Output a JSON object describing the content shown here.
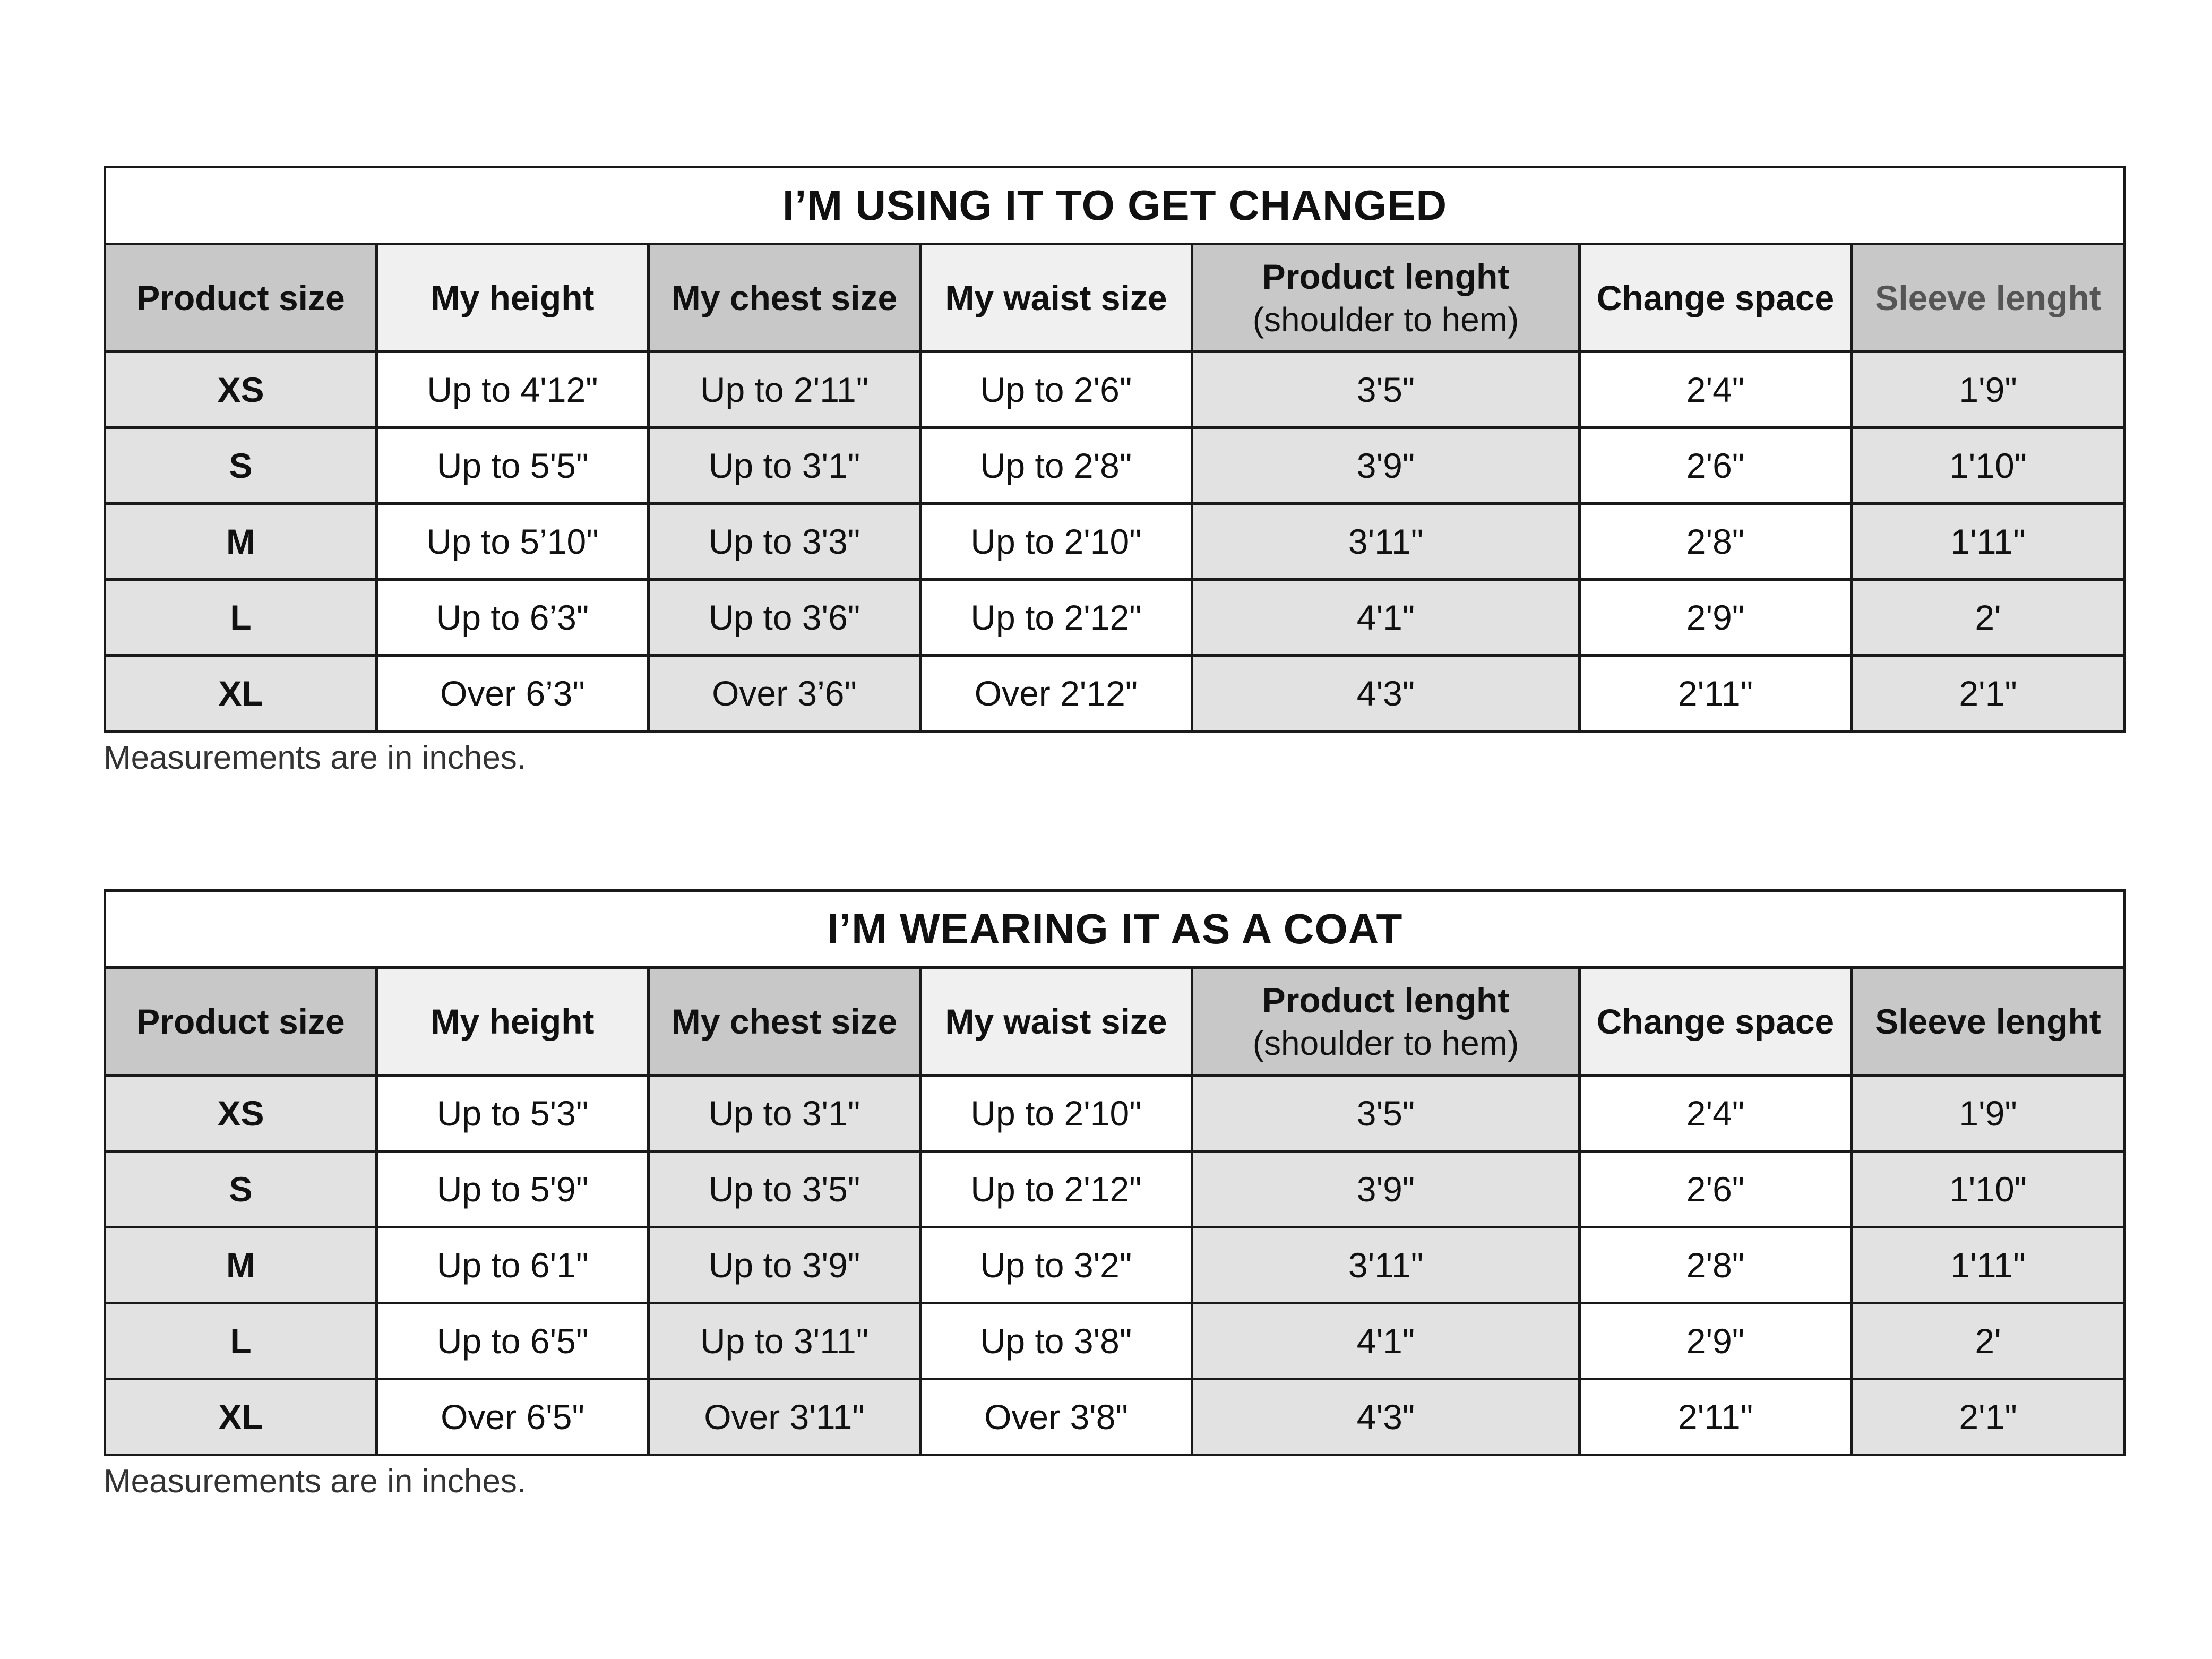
{
  "tables": [
    {
      "title": "I’M USING IT TO GET CHANGED",
      "headers": [
        {
          "label": "Product size",
          "sub": ""
        },
        {
          "label": "My height",
          "sub": ""
        },
        {
          "label": "My chest size",
          "sub": ""
        },
        {
          "label": "My waist size",
          "sub": ""
        },
        {
          "label": "Product lenght",
          "sub": "(shoulder to hem)"
        },
        {
          "label": "Change space",
          "sub": ""
        },
        {
          "label": "Sleeve lenght",
          "sub": ""
        }
      ],
      "rows": [
        [
          "XS",
          "Up to 4'12\"",
          "Up to 2'11\"",
          "Up to 2'6\"",
          "3'5\"",
          "2'4\"",
          "1'9\""
        ],
        [
          "S",
          "Up to 5'5\"",
          "Up to 3'1\"",
          "Up to 2'8\"",
          "3'9\"",
          "2'6\"",
          "1'10\""
        ],
        [
          "M",
          "Up to 5’10\"",
          "Up to 3'3\"",
          "Up to 2'10\"",
          "3'11\"",
          "2'8\"",
          "1'11\""
        ],
        [
          "L",
          "Up to 6’3\"",
          "Up to 3'6\"",
          "Up to 2'12\"",
          "4'1\"",
          "2'9\"",
          "2'"
        ],
        [
          "XL",
          "Over 6’3\"",
          "Over 3’6\"",
          "Over 2'12\"",
          "4'3\"",
          "2'11\"",
          "2'1\""
        ]
      ],
      "note": "Measurements are in inches."
    },
    {
      "title": "I’M WEARING IT AS A COAT",
      "headers": [
        {
          "label": "Product size",
          "sub": ""
        },
        {
          "label": "My height",
          "sub": ""
        },
        {
          "label": "My chest size",
          "sub": ""
        },
        {
          "label": "My waist size",
          "sub": ""
        },
        {
          "label": "Product lenght",
          "sub": "(shoulder to hem)"
        },
        {
          "label": "Change space",
          "sub": ""
        },
        {
          "label": "Sleeve lenght",
          "sub": ""
        }
      ],
      "rows": [
        [
          "XS",
          "Up to 5'3\"",
          "Up to 3'1\"",
          "Up to 2'10\"",
          "3'5\"",
          "2'4\"",
          "1'9\""
        ],
        [
          "S",
          "Up to 5'9\"",
          "Up to 3'5\"",
          "Up to 2'12\"",
          "3'9\"",
          "2'6\"",
          "1'10\""
        ],
        [
          "M",
          "Up to 6'1\"",
          "Up to 3'9\"",
          "Up to 3'2\"",
          "3'11\"",
          "2'8\"",
          "1'11\""
        ],
        [
          "L",
          "Up to 6'5\"",
          "Up to 3'11\"",
          "Up to 3'8\"",
          "4'1\"",
          "2'9\"",
          "2'"
        ],
        [
          "XL",
          "Over 6'5\"",
          "Over 3'11\"",
          "Over 3'8\"",
          "4'3\"",
          "2'11\"",
          "2'1\""
        ]
      ],
      "note": "Measurements are in inches."
    }
  ]
}
